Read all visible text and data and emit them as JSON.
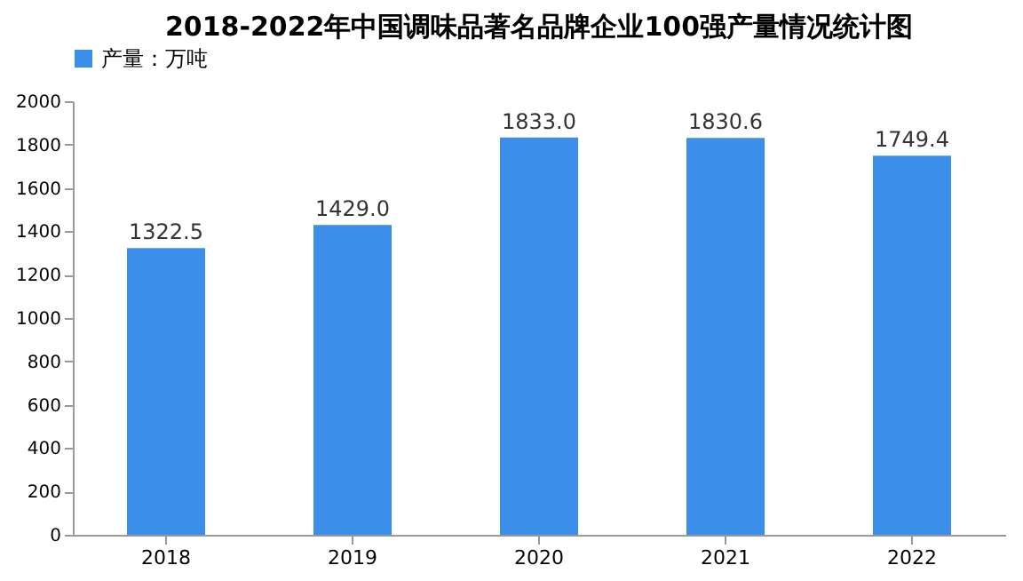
{
  "chart_data": {
    "type": "bar",
    "title": "2018-2022年中国调味品著名品牌企业100强产量情况统计图",
    "categories": [
      "2018",
      "2019",
      "2020",
      "2021",
      "2022"
    ],
    "series": [
      {
        "name": "产量：万吨",
        "color": "#3b8fea",
        "values": [
          1322.5,
          1429.0,
          1833.0,
          1830.6,
          1749.4
        ],
        "value_labels": [
          "1322.5",
          "1429.0",
          "1833.0",
          "1830.6",
          "1749.4"
        ]
      }
    ],
    "ylim": [
      0,
      2000
    ],
    "yticks": [
      0,
      200,
      400,
      600,
      800,
      1000,
      1200,
      1400,
      1600,
      1800,
      2000
    ],
    "grid": false,
    "legend": "top"
  }
}
